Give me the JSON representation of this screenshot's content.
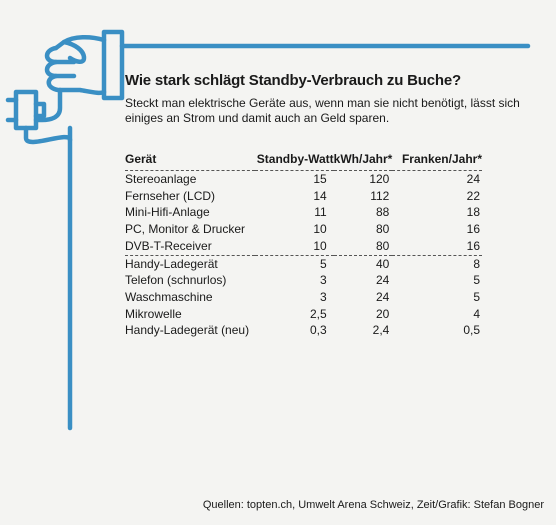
{
  "chart_data": {
    "type": "table",
    "title": "Wie stark schlägt Standby-Verbrauch zu Buche?",
    "subtitle": "Steckt man elektrische Geräte aus, wenn man sie nicht benötigt, lässt sich einiges an Strom und damit auch an Geld sparen.",
    "columns": [
      "Gerät",
      "Standby-Watt",
      "kWh/Jahr*",
      "Franken/Jahr*"
    ],
    "rows": [
      [
        "Stereoanlage",
        "15",
        "120",
        "24"
      ],
      [
        "Fernseher (LCD)",
        "14",
        "112",
        "22"
      ],
      [
        "Mini-Hifi-Anlage",
        "11",
        "88",
        "18"
      ],
      [
        "PC, Monitor & Drucker",
        "10",
        "80",
        "16"
      ],
      [
        "DVB-T-Receiver",
        "10",
        "80",
        "16"
      ],
      [
        "Handy-Ladegerät",
        "5",
        "40",
        "8"
      ],
      [
        "Telefon (schnurlos)",
        "3",
        "24",
        "5"
      ],
      [
        "Waschmaschine",
        "3",
        "24",
        "5"
      ],
      [
        "Mikrowelle",
        "2,5",
        "20",
        "4"
      ],
      [
        "Handy-Ladegerät (neu)",
        "0,3",
        "2,4",
        "0,5"
      ]
    ],
    "source": "Quellen: topten.ch, Umwelt Arena Schweiz, Zeit/Grafik: Stefan Bogner"
  },
  "colors": {
    "accent": "#3a8fc4",
    "background": "#f4f4f2",
    "text": "#1a1a1a"
  },
  "icons": [
    "hand-holding-plug-icon"
  ]
}
